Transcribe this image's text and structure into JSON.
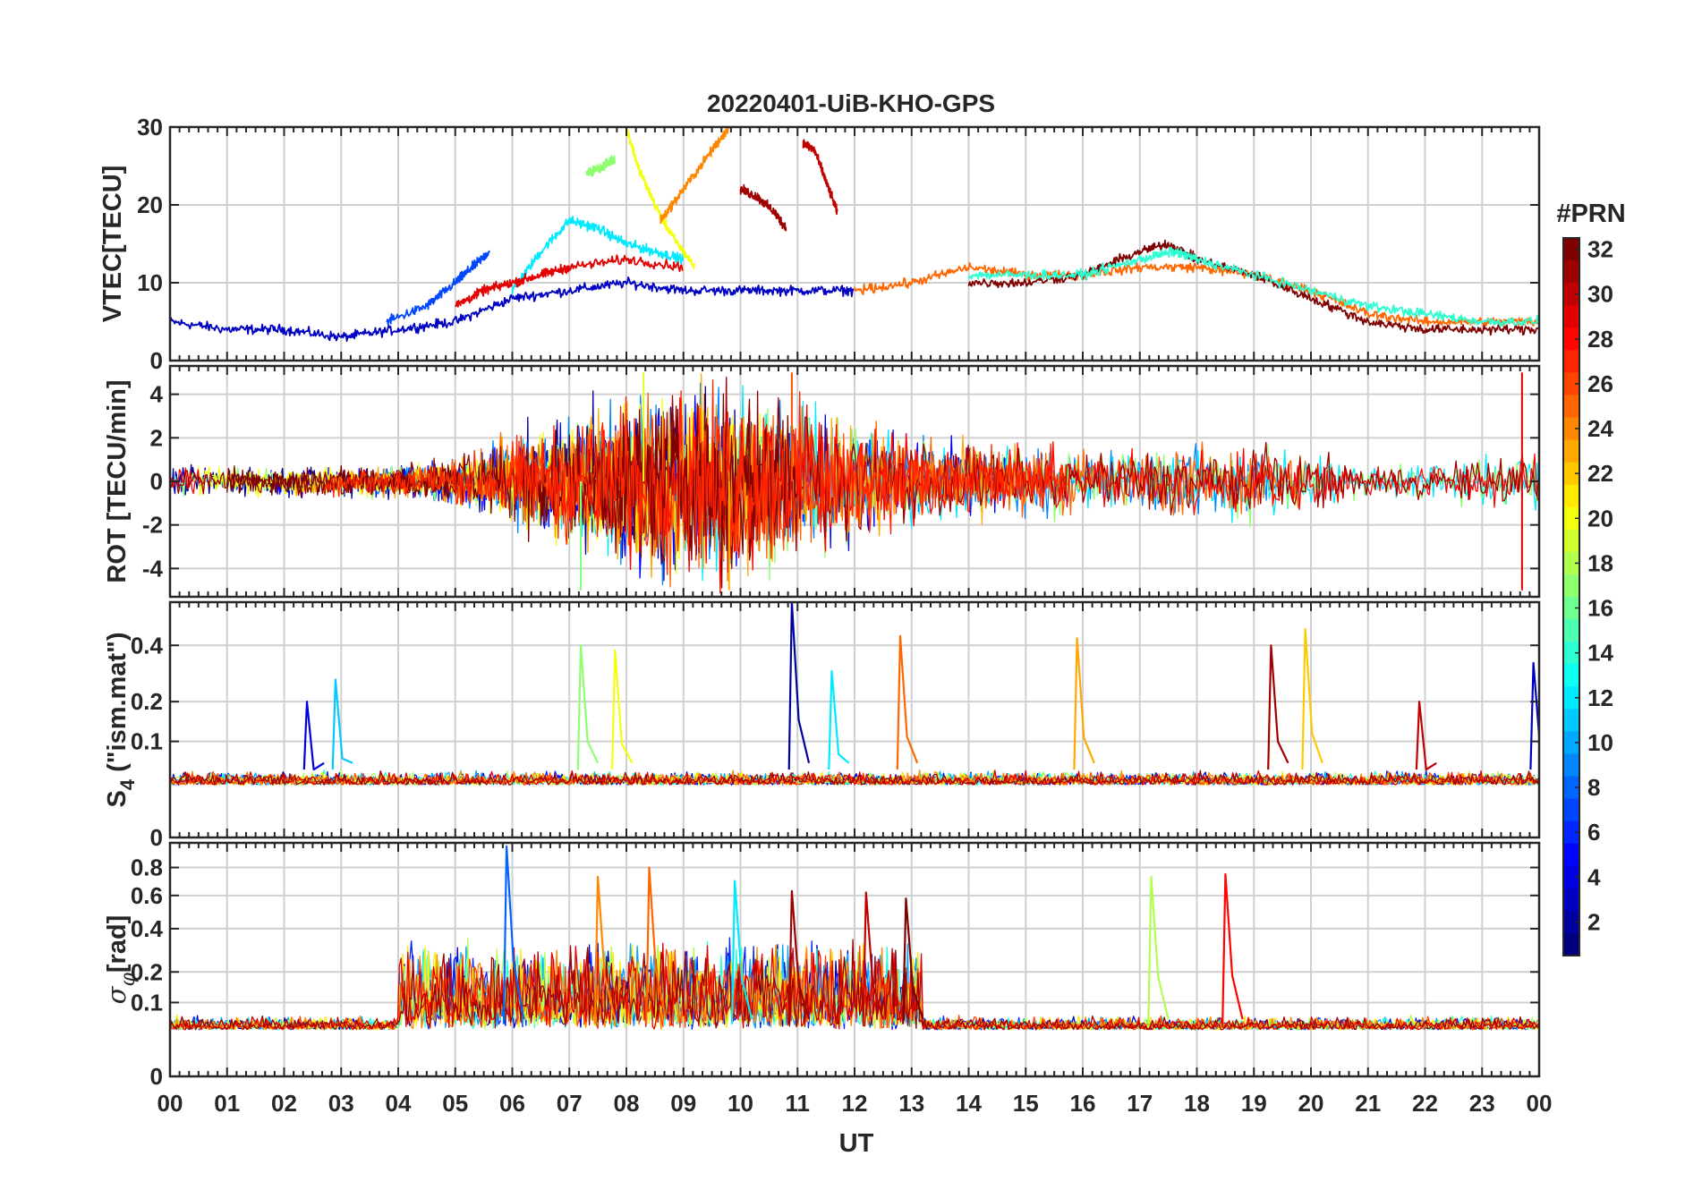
{
  "title": "20220401-UiB-KHO-GPS",
  "xlabel": "UT",
  "x_ticks": [
    "00",
    "01",
    "02",
    "03",
    "04",
    "05",
    "06",
    "07",
    "08",
    "09",
    "10",
    "11",
    "12",
    "13",
    "14",
    "15",
    "16",
    "17",
    "18",
    "19",
    "20",
    "21",
    "22",
    "23",
    "00"
  ],
  "colorbar": {
    "label": "#PRN",
    "range": [
      1,
      32
    ],
    "ticks": [
      "32",
      "30",
      "28",
      "26",
      "24",
      "22",
      "20",
      "18",
      "16",
      "14",
      "12",
      "10",
      "8",
      "6",
      "4",
      "2"
    ],
    "colormap": "jet",
    "stops": [
      "#00007f",
      "#0000ff",
      "#007fff",
      "#00ffff",
      "#7fff7f",
      "#ffff00",
      "#ff7f00",
      "#ff0000",
      "#7f0000"
    ]
  },
  "panels": [
    {
      "name": "vtec",
      "ylabel": "VTEC[TECU]",
      "yticks": [
        "30",
        "20",
        "10",
        "0"
      ]
    },
    {
      "name": "rot",
      "ylabel": "ROT [TECU/min]",
      "yticks": [
        "4",
        "2",
        "0",
        "-2",
        "-4"
      ]
    },
    {
      "name": "s4",
      "ylabel_main": "S",
      "ylabel_sub": "4",
      "ylabel_rest": " (\"ism.mat\")",
      "yticks": [
        "0.4",
        "0.2",
        "0.1",
        "0"
      ]
    },
    {
      "name": "sigma",
      "ylabel_main": "σ",
      "ylabel_sub": "φ",
      "ylabel_rest": "[rad]",
      "yticks": [
        "0.8",
        "0.6",
        "0.4",
        "0.2",
        "0.1",
        "0"
      ]
    }
  ],
  "chart_data": [
    {
      "type": "line",
      "title": "20220401-UiB-KHO-GPS",
      "ylabel": "VTEC[TECU]",
      "xlabel": "UT",
      "xlim": [
        0,
        24
      ],
      "ylim": [
        0,
        30
      ],
      "color_by": "PRN",
      "series": [
        {
          "name": "PRN 3",
          "prn": 3,
          "x": [
            0,
            1,
            2,
            3,
            4,
            5,
            6,
            7,
            8,
            9,
            10,
            11,
            12
          ],
          "values": [
            5,
            4,
            4,
            3,
            4,
            5,
            8,
            9,
            10,
            9,
            9,
            9,
            9
          ]
        },
        {
          "name": "PRN 7",
          "prn": 7,
          "x": [
            3.8,
            4.5,
            5,
            5.3,
            5.6
          ],
          "values": [
            5,
            7,
            10,
            12,
            14
          ]
        },
        {
          "name": "PRN 12",
          "prn": 12,
          "x": [
            6,
            6.5,
            7,
            7.5,
            8,
            8.5,
            9
          ],
          "values": [
            9,
            14,
            18,
            17,
            15,
            14,
            13
          ]
        },
        {
          "name": "PRN 17",
          "prn": 17,
          "x": [
            7.3,
            7.6,
            7.8
          ],
          "values": [
            24,
            25,
            26
          ]
        },
        {
          "name": "PRN 20",
          "prn": 20,
          "x": [
            8,
            8.2,
            8.5,
            8.8,
            9.2
          ],
          "values": [
            30,
            25,
            20,
            16,
            12
          ]
        },
        {
          "name": "PRN 24",
          "prn": 24,
          "x": [
            8.6,
            9,
            9.5,
            9.8
          ],
          "values": [
            18,
            22,
            27,
            30
          ]
        },
        {
          "name": "PRN 29",
          "prn": 29,
          "x": [
            5,
            5.5,
            6,
            6.5,
            7,
            8,
            9
          ],
          "values": [
            7,
            9,
            10,
            11,
            12,
            13,
            12
          ]
        },
        {
          "name": "PRN 31",
          "prn": 31,
          "x": [
            10,
            10.3,
            10.6,
            10.8
          ],
          "values": [
            22,
            21,
            19,
            17
          ]
        },
        {
          "name": "PRN 30",
          "prn": 30,
          "x": [
            11.1,
            11.3,
            11.5,
            11.7
          ],
          "values": [
            28,
            27,
            23,
            19
          ]
        },
        {
          "name": "PRN 25",
          "prn": 25,
          "x": [
            12,
            13,
            14,
            15,
            16,
            17,
            18,
            19,
            20,
            21,
            22,
            23,
            24
          ],
          "values": [
            9,
            10,
            12,
            11,
            11,
            12,
            12,
            11,
            9,
            6,
            5,
            5,
            5
          ]
        },
        {
          "name": "PRN 32",
          "prn": 32,
          "x": [
            14,
            15,
            16,
            17,
            17.5,
            18,
            19,
            20,
            21,
            22,
            23,
            24
          ],
          "values": [
            10,
            10,
            11,
            14,
            15,
            13,
            11,
            8,
            5,
            4,
            4,
            4
          ]
        },
        {
          "name": "PRN 14",
          "prn": 14,
          "x": [
            14,
            15,
            16,
            17,
            17.6,
            18,
            19,
            20,
            21,
            22,
            23,
            24
          ],
          "values": [
            11,
            11,
            11,
            13,
            14,
            13,
            11,
            9,
            7,
            6,
            5,
            5
          ]
        }
      ]
    },
    {
      "type": "line",
      "ylabel": "ROT [TECU/min]",
      "xlim": [
        0,
        24
      ],
      "ylim": [
        -5.3,
        5.3
      ],
      "color_by": "PRN",
      "noise_envelope": {
        "x": [
          0,
          2,
          4,
          5,
          6,
          7,
          8,
          9,
          10,
          11,
          12,
          13,
          14,
          15,
          16,
          17,
          18,
          19,
          20,
          21,
          22,
          23,
          24
        ],
        "amplitude": [
          0.8,
          0.8,
          0.9,
          1.2,
          2.5,
          3.5,
          4.5,
          5,
          5,
          4.5,
          3,
          2.5,
          2,
          1.8,
          1.8,
          1.8,
          2,
          2,
          1.6,
          0.9,
          1,
          1.3,
          1.5
        ]
      },
      "spikes": [
        {
          "x": 7.2,
          "values": [
            -5
          ]
        },
        {
          "x": 8.3,
          "values": [
            5
          ]
        },
        {
          "x": 9.8,
          "values": [
            -5
          ]
        },
        {
          "x": 10.9,
          "values": [
            5
          ]
        },
        {
          "x": 23.7,
          "values": [
            5,
            -5
          ]
        }
      ]
    },
    {
      "type": "line",
      "ylabel": "S4 (\"ism.mat\")",
      "xlim": [
        0,
        24
      ],
      "ylim": [
        0,
        0.6
      ],
      "y_scale": "sqrt",
      "baseline": 0.03,
      "spikes": [
        {
          "x": 2.4,
          "value": 0.2,
          "prn": 4
        },
        {
          "x": 2.9,
          "value": 0.27,
          "prn": 11
        },
        {
          "x": 7.2,
          "value": 0.4,
          "prn": 17
        },
        {
          "x": 7.8,
          "value": 0.38,
          "prn": 20
        },
        {
          "x": 10.9,
          "value": 0.6,
          "prn": 2
        },
        {
          "x": 11.6,
          "value": 0.3,
          "prn": 12
        },
        {
          "x": 12.8,
          "value": 0.44,
          "prn": 25
        },
        {
          "x": 15.9,
          "value": 0.43,
          "prn": 23
        },
        {
          "x": 19.3,
          "value": 0.4,
          "prn": 31
        },
        {
          "x": 19.9,
          "value": 0.47,
          "prn": 22
        },
        {
          "x": 21.9,
          "value": 0.2,
          "prn": 30
        },
        {
          "x": 23.9,
          "value": 0.33,
          "prn": 3
        }
      ]
    },
    {
      "type": "line",
      "ylabel": "σφ [rad]",
      "xlabel": "UT",
      "xlim": [
        0,
        24
      ],
      "ylim": [
        0,
        1
      ],
      "y_scale": "sqrt",
      "spikes": [
        {
          "x": 5.9,
          "value": 0.97,
          "prn": 8
        },
        {
          "x": 7.5,
          "value": 0.73,
          "prn": 24
        },
        {
          "x": 8.4,
          "value": 0.8,
          "prn": 25
        },
        {
          "x": 9.9,
          "value": 0.7,
          "prn": 12
        },
        {
          "x": 10.9,
          "value": 0.63,
          "prn": 31
        },
        {
          "x": 12.2,
          "value": 0.62,
          "prn": 30
        },
        {
          "x": 12.9,
          "value": 0.58,
          "prn": 32
        },
        {
          "x": 17.2,
          "value": 0.73,
          "prn": 18
        },
        {
          "x": 18.5,
          "value": 0.75,
          "prn": 28
        }
      ],
      "active_band": {
        "x": [
          4,
          13.2
        ],
        "typical_value": 0.3
      }
    }
  ]
}
